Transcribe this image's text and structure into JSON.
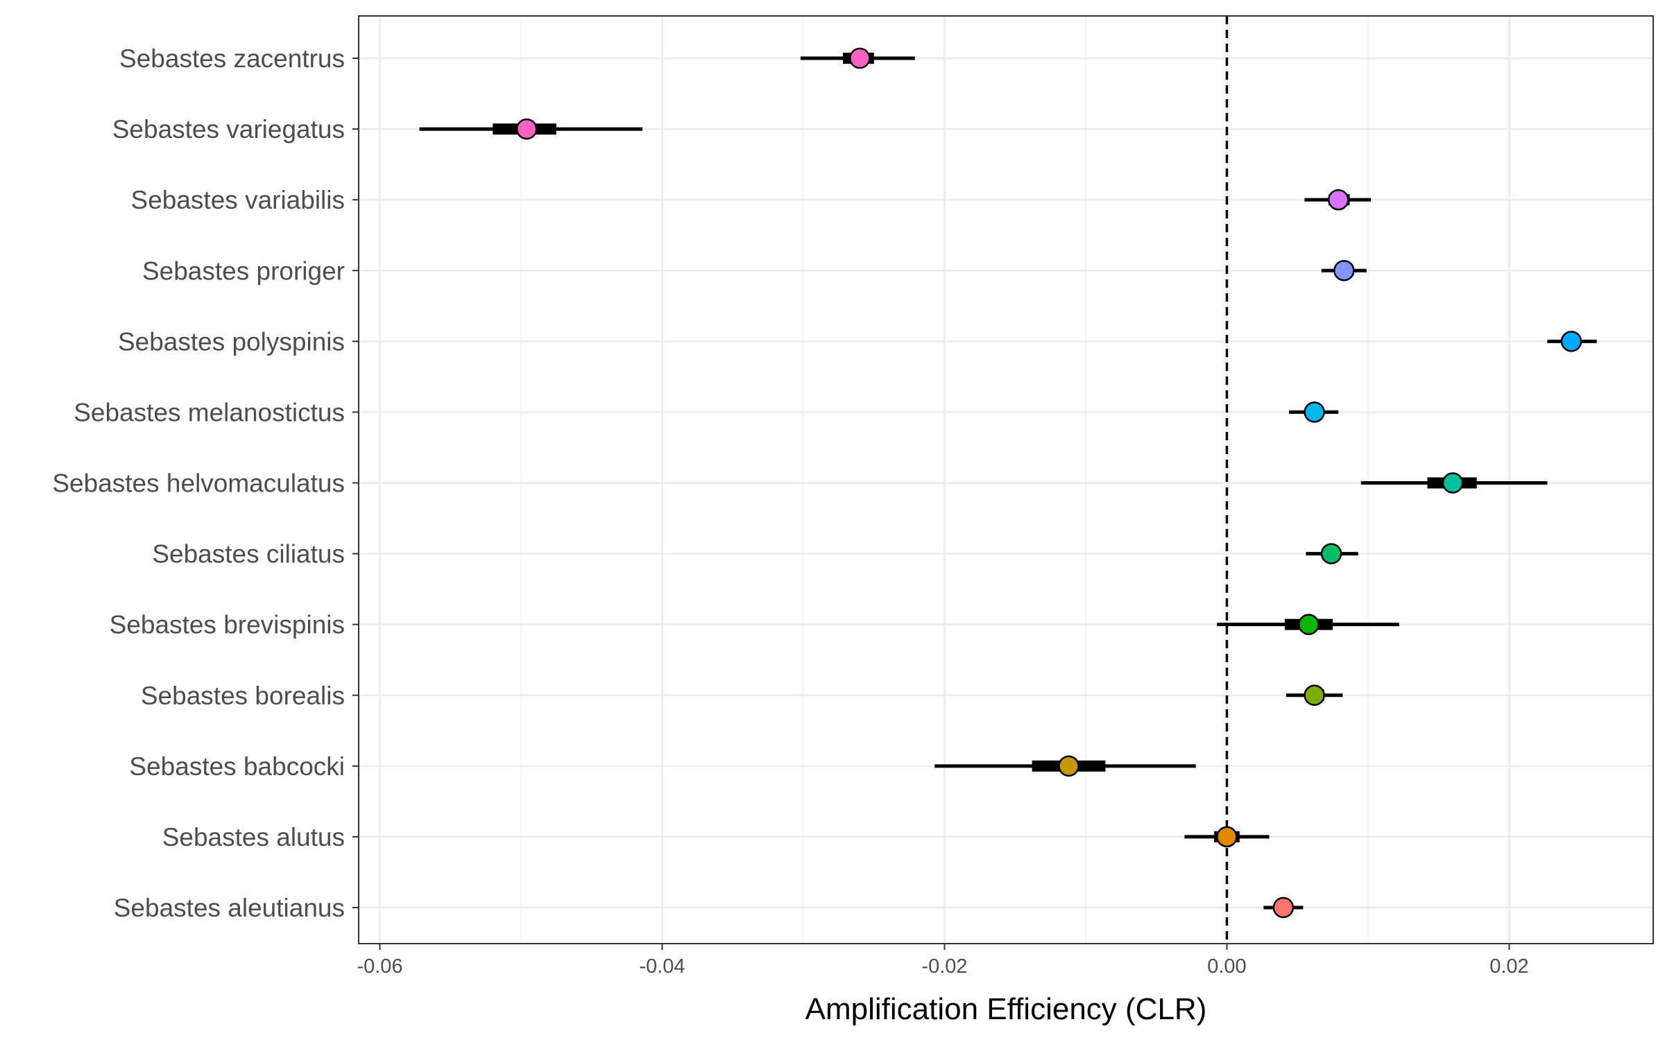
{
  "chart_data": {
    "type": "forest",
    "xlabel": "Amplification Efficiency (CLR)",
    "ylabel": "",
    "xlim": [
      -0.0615,
      0.0302
    ],
    "xticks": [
      -0.06,
      -0.04,
      -0.02,
      0.0,
      0.02
    ],
    "xtick_labels": [
      "-0.06",
      "-0.04",
      "-0.02",
      "0.00",
      "0.02"
    ],
    "reference_line": 0.0,
    "grid": true,
    "species": [
      {
        "name": "Sebastes zacentrus",
        "estimate": -0.026,
        "lower": -0.0302,
        "upper": -0.0221,
        "inner_lower": -0.0272,
        "inner_upper": -0.025,
        "color": "#FF61C3"
      },
      {
        "name": "Sebastes variegatus",
        "estimate": -0.0496,
        "lower": -0.0572,
        "upper": -0.0414,
        "inner_lower": -0.052,
        "inner_upper": -0.0475,
        "color": "#FF61C3"
      },
      {
        "name": "Sebastes variabilis",
        "estimate": 0.0079,
        "lower": 0.0055,
        "upper": 0.0102,
        "inner_lower": 0.0072,
        "inner_upper": 0.0087,
        "color": "#DB72FB"
      },
      {
        "name": "Sebastes proriger",
        "estimate": 0.0083,
        "lower": 0.0067,
        "upper": 0.0099,
        "inner_lower": 0.0078,
        "inner_upper": 0.0089,
        "color": "#8494FF"
      },
      {
        "name": "Sebastes polyspinis",
        "estimate": 0.0244,
        "lower": 0.0227,
        "upper": 0.0262,
        "inner_lower": 0.0238,
        "inner_upper": 0.025,
        "color": "#00A9FF"
      },
      {
        "name": "Sebastes melanostictus",
        "estimate": 0.0062,
        "lower": 0.0044,
        "upper": 0.0079,
        "inner_lower": 0.0056,
        "inner_upper": 0.0068,
        "color": "#00B8E7"
      },
      {
        "name": "Sebastes helvomaculatus",
        "estimate": 0.016,
        "lower": 0.0095,
        "upper": 0.0227,
        "inner_lower": 0.0142,
        "inner_upper": 0.0177,
        "color": "#00C19A"
      },
      {
        "name": "Sebastes ciliatus",
        "estimate": 0.0074,
        "lower": 0.0056,
        "upper": 0.0093,
        "inner_lower": 0.0068,
        "inner_upper": 0.008,
        "color": "#00BE67"
      },
      {
        "name": "Sebastes brevispinis",
        "estimate": 0.0058,
        "lower": -0.0007,
        "upper": 0.0122,
        "inner_lower": 0.0041,
        "inner_upper": 0.0075,
        "color": "#0CB702"
      },
      {
        "name": "Sebastes borealis",
        "estimate": 0.0062,
        "lower": 0.0042,
        "upper": 0.0082,
        "inner_lower": 0.0056,
        "inner_upper": 0.0069,
        "color": "#7CAE00"
      },
      {
        "name": "Sebastes babcocki",
        "estimate": -0.0112,
        "lower": -0.0207,
        "upper": -0.0022,
        "inner_lower": -0.0138,
        "inner_upper": -0.0086,
        "color": "#C59900"
      },
      {
        "name": "Sebastes alutus",
        "estimate": 0.0,
        "lower": -0.003,
        "upper": 0.003,
        "inner_lower": -0.0009,
        "inner_upper": 0.0009,
        "color": "#E38900"
      },
      {
        "name": "Sebastes aleutianus",
        "estimate": 0.004,
        "lower": 0.0026,
        "upper": 0.0054,
        "inner_lower": 0.0036,
        "inner_upper": 0.0044,
        "color": "#F8766D"
      }
    ]
  }
}
